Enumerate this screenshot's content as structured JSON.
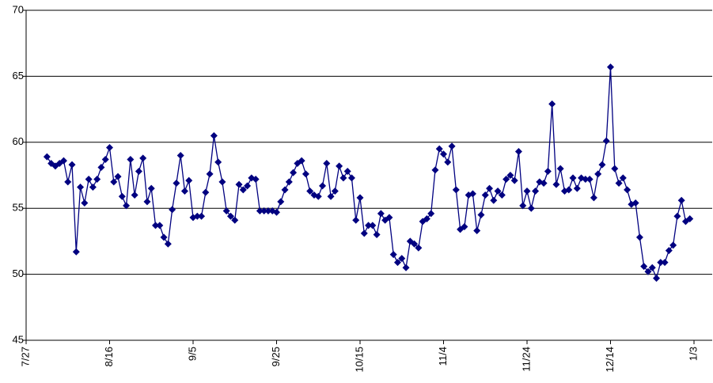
{
  "chart_data": {
    "type": "line",
    "categories": [
      "7/27",
      null,
      null,
      null,
      null,
      null,
      null,
      null,
      null,
      null,
      null,
      null,
      null,
      null,
      null,
      null,
      null,
      null,
      null,
      null,
      "8/16",
      null,
      null,
      null,
      null,
      null,
      null,
      null,
      null,
      null,
      null,
      null,
      null,
      null,
      null,
      null,
      null,
      null,
      null,
      null,
      "9/5",
      null,
      null,
      null,
      null,
      null,
      null,
      null,
      null,
      null,
      null,
      null,
      null,
      null,
      null,
      null,
      null,
      null,
      null,
      null,
      "9/25",
      null,
      null,
      null,
      null,
      null,
      null,
      null,
      null,
      null,
      null,
      null,
      null,
      null,
      null,
      null,
      null,
      null,
      null,
      null,
      "10/15",
      null,
      null,
      null,
      null,
      null,
      null,
      null,
      null,
      null,
      null,
      null,
      null,
      null,
      null,
      null,
      null,
      null,
      null,
      null,
      "11/4",
      null,
      null,
      null,
      null,
      null,
      null,
      null,
      null,
      null,
      null,
      null,
      null,
      null,
      null,
      null,
      null,
      null,
      null,
      null,
      "11/24",
      null,
      null,
      null,
      null,
      null,
      null,
      null,
      null,
      null,
      null,
      null,
      null,
      null,
      null,
      null,
      null,
      null,
      null,
      null,
      "12/14",
      null,
      null,
      null,
      null,
      null,
      null,
      null,
      null,
      null,
      null,
      null,
      null,
      null,
      null,
      null,
      null,
      null,
      null,
      null,
      "1/3",
      null,
      null,
      null,
      null
    ],
    "values": [
      null,
      null,
      null,
      null,
      null,
      58.9,
      58.4,
      58.2,
      58.4,
      58.6,
      57.0,
      58.3,
      51.7,
      56.6,
      55.4,
      57.2,
      56.6,
      57.2,
      58.1,
      58.7,
      59.6,
      57.0,
      57.4,
      55.9,
      55.2,
      58.7,
      56.0,
      57.8,
      58.8,
      55.5,
      56.5,
      53.7,
      53.7,
      52.8,
      52.3,
      54.9,
      56.9,
      59.0,
      56.3,
      57.1,
      54.3,
      54.4,
      54.4,
      56.2,
      57.6,
      60.5,
      58.5,
      57.0,
      54.8,
      54.4,
      54.1,
      56.8,
      56.4,
      56.7,
      57.3,
      57.2,
      54.8,
      54.8,
      54.8,
      54.8,
      54.7,
      55.5,
      56.4,
      57.0,
      57.7,
      58.4,
      58.6,
      57.6,
      56.3,
      56.0,
      55.9,
      56.7,
      58.4,
      55.9,
      56.3,
      58.2,
      57.3,
      57.8,
      57.3,
      54.1,
      55.8,
      53.1,
      53.7,
      53.7,
      53.0,
      54.6,
      54.1,
      54.3,
      51.5,
      50.9,
      51.2,
      50.5,
      52.5,
      52.3,
      52.0,
      54.0,
      54.2,
      54.6,
      57.9,
      59.5,
      59.1,
      58.5,
      59.7,
      56.4,
      53.4,
      53.6,
      56.0,
      56.1,
      53.3,
      54.5,
      56.0,
      56.5,
      55.6,
      56.3,
      56.0,
      57.2,
      57.5,
      57.1,
      59.3,
      55.2,
      56.3,
      55.0,
      56.3,
      57.0,
      56.9,
      57.8,
      62.9,
      56.8,
      58.0,
      56.3,
      56.4,
      57.3,
      56.5,
      57.3,
      57.2,
      57.2,
      55.8,
      57.6,
      58.3,
      60.1,
      65.7,
      58.0,
      56.9,
      57.3,
      56.4,
      55.3,
      55.4,
      52.8,
      50.6,
      50.2,
      50.5,
      49.7,
      50.9,
      50.9,
      51.8,
      52.2,
      54.4,
      55.6,
      54.0,
      54.2,
      null,
      null,
      null,
      null,
      null
    ],
    "color": "#000080",
    "ylim": [
      45,
      70
    ],
    "yticks": [
      45,
      50,
      55,
      60,
      65,
      70
    ],
    "grid": true
  }
}
